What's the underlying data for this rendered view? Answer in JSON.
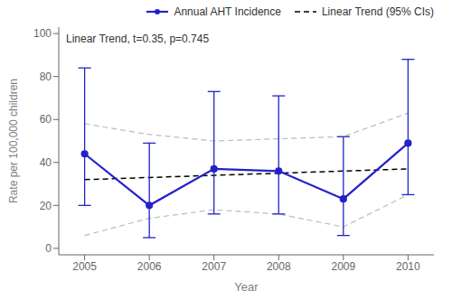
{
  "chart_data": {
    "type": "line",
    "annotation": "Linear Trend, t=0.35, p=0.745",
    "x_label": "Year",
    "y_label": "Rate per 100,000 children",
    "x": [
      2005,
      2006,
      2007,
      2008,
      2009,
      2010
    ],
    "series": [
      {
        "name": "Annual AHT Incidence",
        "color": "#2222CC",
        "marker": "o",
        "line_style": "solid",
        "values": [
          44,
          20,
          37,
          36,
          23,
          49
        ],
        "ci_low": [
          20,
          5,
          16,
          16,
          6,
          25
        ],
        "ci_high": [
          84,
          49,
          73,
          71,
          52,
          88
        ]
      },
      {
        "name": "Linear Trend (95% CIs)",
        "color": "#000000",
        "line_style": "dashed",
        "values": [
          32,
          33,
          34,
          35,
          36,
          37
        ]
      },
      {
        "color": "#BBBBBB",
        "line_style": "dashed",
        "values": [
          6,
          14,
          18,
          16,
          10,
          25
        ]
      },
      {
        "color": "#BBBBBB",
        "line_style": "dashed",
        "values": [
          58,
          53,
          50,
          51,
          52,
          63
        ]
      }
    ],
    "xlim": [
      2004.6,
      2010.4
    ],
    "xticks": [
      2005,
      2006,
      2007,
      2008,
      2009,
      2010
    ],
    "ylim": [
      -3,
      103
    ],
    "yticks": [
      0,
      20,
      40,
      60,
      80,
      100
    ],
    "grid": false,
    "legend": "upper right"
  }
}
